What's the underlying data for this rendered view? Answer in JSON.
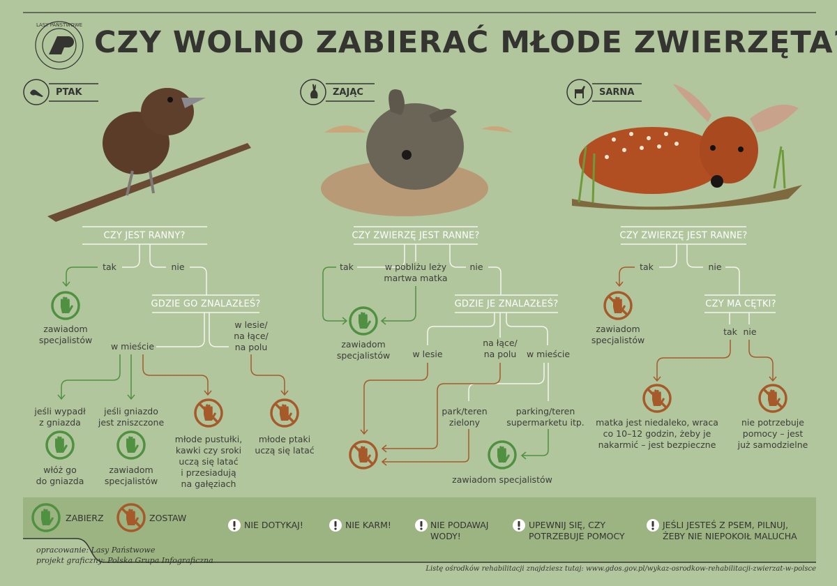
{
  "header": {
    "title": "CZY WOLNO ZABIERAĆ MŁODE ZWIERZĘTA?",
    "logo_text": "LASY PAŃSTWOWE"
  },
  "colors": {
    "background": "#b1c69d",
    "take": "#4f9140",
    "leave": "#a65a2a",
    "lines": "#f5f5ef",
    "text": "#343431"
  },
  "bird": {
    "label": "PTAK",
    "icon": "bird-icon",
    "q1": "CZY JEST RANNY?",
    "yes": "tak",
    "no": "nie",
    "yes_result": [
      "zawiadom",
      "specjalistów"
    ],
    "q2": "GDZIE GO ZNALAZŁEŚ?",
    "city": "w mieście",
    "forest": [
      "w lesie/",
      "na łące/",
      "na polu"
    ],
    "case1": [
      "jeśli wypadł",
      "z gniazda"
    ],
    "case1_result": [
      "włóż go",
      "do gniazda"
    ],
    "case2": [
      "jeśli gniazdo",
      "jest zniszczone"
    ],
    "case2_result": [
      "zawiadom",
      "specjalistów"
    ],
    "case3": [
      "młode pustułki,",
      "kawki czy sroki",
      "uczą się latać",
      "i przesiadują",
      "na gałęziach"
    ],
    "case4": [
      "młode ptaki",
      "uczą się latać"
    ]
  },
  "hare": {
    "label": "ZAJĄC",
    "icon": "rabbit-icon",
    "q1": "CZY ZWIERZĘ JEST RANNE?",
    "yes": "tak",
    "mid": [
      "w pobliżu leży",
      "martwa matka"
    ],
    "no": "nie",
    "yes_result": [
      "zawiadom",
      "specjalistów"
    ],
    "q2": "GDZIE JE ZNALAZŁEŚ?",
    "forest": "w lesie",
    "meadow": [
      "na łące/",
      "na polu"
    ],
    "city": "w mieście",
    "park": [
      "park/teren",
      "zielony"
    ],
    "parking": [
      "parking/teren",
      "supermarketu itp."
    ],
    "city_result": "zawiadom specjalistów"
  },
  "deer": {
    "label": "SARNA",
    "icon": "deer-icon",
    "q1": "CZY ZWIERZĘ JEST RANNE?",
    "yes": "tak",
    "no": "nie",
    "yes_result": [
      "zawiadom",
      "specjalistów"
    ],
    "q2": "CZY MA CĘTKI?",
    "spots_yes": "tak",
    "spots_no": "nie",
    "spots_yes_result": [
      "matka jest niedaleko, wraca",
      "co 10–12 godzin, żeby je",
      "nakarmić – jest bezpieczne"
    ],
    "spots_no_result": [
      "nie potrzebuje",
      "pomocy – jest",
      "już samodzielne"
    ]
  },
  "legend": {
    "take": "ZABIERZ",
    "leave": "ZOSTAW"
  },
  "warnings": [
    [
      "NIE DOTYKAJ!"
    ],
    [
      "NIE KARM!"
    ],
    [
      "NIE PODAWAJ",
      "WODY!"
    ],
    [
      "UPEWNIJ SIĘ, CZY",
      "POTRZEBUJE POMOCY"
    ],
    [
      "JEŚLI JESTEŚ Z PSEM, PILNUJ,",
      "ŻEBY NIE NIEPOKOIŁ MALUCHA"
    ]
  ],
  "credits": {
    "author": "opracowanie: Lasy Państwowe",
    "design": "projekt graficzny: Polska Grupa Infograficzna"
  },
  "footer": "Listę ośrodków rehabilitacji znajdziesz tutaj: www.gdos.gov.pl/wykaz-osrodkow-rehabilitacji-zwierzat-w-polsce"
}
